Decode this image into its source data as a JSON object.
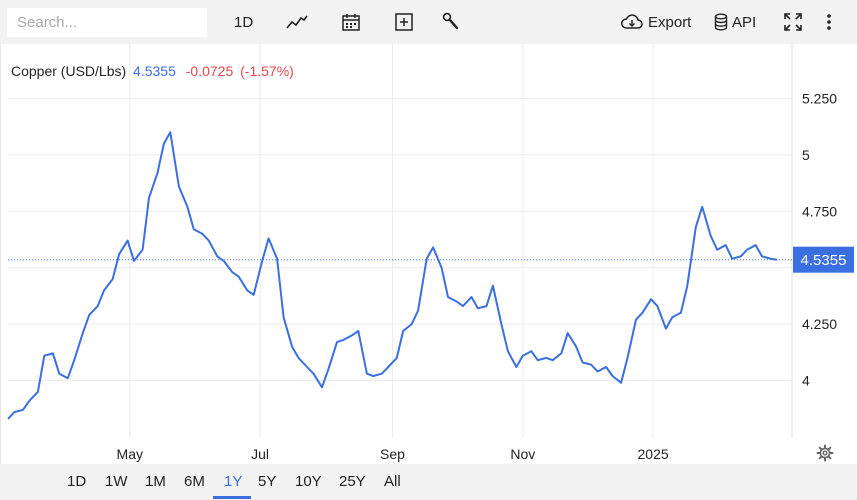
{
  "toolbar": {
    "search_placeholder": "Search...",
    "interval_label": "1D",
    "export_label": "Export",
    "api_label": "API",
    "icons": [
      "line-chart-icon",
      "calendar-icon",
      "add-box-icon",
      "wrench-icon",
      "cloud-download-icon",
      "database-icon",
      "fullscreen-icon",
      "more-vertical-icon"
    ]
  },
  "legend": {
    "name": "Copper (USD/Lbs)",
    "price": "4.5355",
    "change": "-0.0725",
    "change_pct": "(-1.57%)"
  },
  "range": {
    "buttons": [
      "1D",
      "1W",
      "1M",
      "6M",
      "1Y",
      "5Y",
      "10Y",
      "25Y",
      "All"
    ],
    "active": "1Y"
  },
  "colors": {
    "line": "#3b6fe0",
    "negative": "#e24848",
    "toolbar_bg": "#f2f2f2",
    "grid": "#ececec"
  },
  "chart_data": {
    "type": "line",
    "title": "",
    "xlabel": "",
    "ylabel": "",
    "ylim": [
      3.8,
      5.5
    ],
    "yticks": [
      4,
      4.25,
      4.5,
      4.75,
      5,
      5.25
    ],
    "ytick_labels": [
      "4",
      "4.250",
      "4.500",
      "4.750",
      "5",
      "5.250"
    ],
    "xticks": [
      {
        "label": "May",
        "date": "2024-05-01"
      },
      {
        "label": "Jul",
        "date": "2024-07-01"
      },
      {
        "label": "Sep",
        "date": "2024-09-01"
      },
      {
        "label": "Nov",
        "date": "2024-11-01"
      },
      {
        "label": "2025",
        "date": "2025-01-01"
      }
    ],
    "last_value_label": "4.5355",
    "last_value": 4.5355,
    "grid": true,
    "series": [
      {
        "x": [
          "2024-03-05",
          "2024-03-08",
          "2024-03-12",
          "2024-03-15",
          "2024-03-19",
          "2024-03-22",
          "2024-03-26",
          "2024-03-29",
          "2024-04-02",
          "2024-04-05",
          "2024-04-09",
          "2024-04-12",
          "2024-04-16",
          "2024-04-19",
          "2024-04-23",
          "2024-04-26",
          "2024-04-30",
          "2024-05-03",
          "2024-05-07",
          "2024-05-10",
          "2024-05-14",
          "2024-05-17",
          "2024-05-20",
          "2024-05-24",
          "2024-05-28",
          "2024-05-31",
          "2024-06-04",
          "2024-06-07",
          "2024-06-11",
          "2024-06-14",
          "2024-06-18",
          "2024-06-21",
          "2024-06-25",
          "2024-06-28",
          "2024-07-02",
          "2024-07-05",
          "2024-07-09",
          "2024-07-12",
          "2024-07-16",
          "2024-07-19",
          "2024-07-23",
          "2024-07-26",
          "2024-07-30",
          "2024-08-02",
          "2024-08-06",
          "2024-08-09",
          "2024-08-13",
          "2024-08-16",
          "2024-08-20",
          "2024-08-23",
          "2024-08-27",
          "2024-08-30",
          "2024-09-03",
          "2024-09-06",
          "2024-09-10",
          "2024-09-13",
          "2024-09-17",
          "2024-09-20",
          "2024-09-24",
          "2024-09-27",
          "2024-10-01",
          "2024-10-04",
          "2024-10-08",
          "2024-10-11",
          "2024-10-15",
          "2024-10-18",
          "2024-10-22",
          "2024-10-25",
          "2024-10-29",
          "2024-11-01",
          "2024-11-05",
          "2024-11-08",
          "2024-11-12",
          "2024-11-15",
          "2024-11-19",
          "2024-11-22",
          "2024-11-26",
          "2024-11-29",
          "2024-12-03",
          "2024-12-06",
          "2024-12-10",
          "2024-12-13",
          "2024-12-17",
          "2024-12-20",
          "2024-12-24",
          "2024-12-27",
          "2024-12-31",
          "2025-01-03",
          "2025-01-07",
          "2025-01-10",
          "2025-01-14",
          "2025-01-17",
          "2025-01-21",
          "2025-01-24",
          "2025-01-28",
          "2025-01-31",
          "2025-02-04",
          "2025-02-07",
          "2025-02-11",
          "2025-02-14",
          "2025-02-18",
          "2025-02-21",
          "2025-02-25",
          "2025-02-28"
        ],
        "values": [
          3.83,
          3.86,
          3.87,
          3.91,
          3.95,
          4.11,
          4.12,
          4.03,
          4.01,
          4.09,
          4.21,
          4.29,
          4.33,
          4.4,
          4.45,
          4.56,
          4.62,
          4.53,
          4.58,
          4.81,
          4.92,
          5.05,
          5.1,
          4.86,
          4.77,
          4.67,
          4.65,
          4.62,
          4.55,
          4.53,
          4.48,
          4.46,
          4.4,
          4.38,
          4.53,
          4.63,
          4.54,
          4.28,
          4.15,
          4.1,
          4.06,
          4.03,
          3.97,
          4.05,
          4.17,
          4.18,
          4.2,
          4.22,
          4.03,
          4.02,
          4.03,
          4.06,
          4.1,
          4.22,
          4.25,
          4.31,
          4.54,
          4.59,
          4.5,
          4.37,
          4.35,
          4.33,
          4.37,
          4.32,
          4.33,
          4.42,
          4.25,
          4.13,
          4.06,
          4.11,
          4.13,
          4.09,
          4.1,
          4.09,
          4.12,
          4.21,
          4.15,
          4.08,
          4.07,
          4.04,
          4.06,
          4.02,
          3.99,
          4.1,
          4.27,
          4.3,
          4.36,
          4.33,
          4.23,
          4.28,
          4.3,
          4.42,
          4.68,
          4.77,
          4.64,
          4.58,
          4.6,
          4.54,
          4.55,
          4.58,
          4.6,
          4.55,
          4.54,
          4.5355
        ]
      }
    ]
  }
}
